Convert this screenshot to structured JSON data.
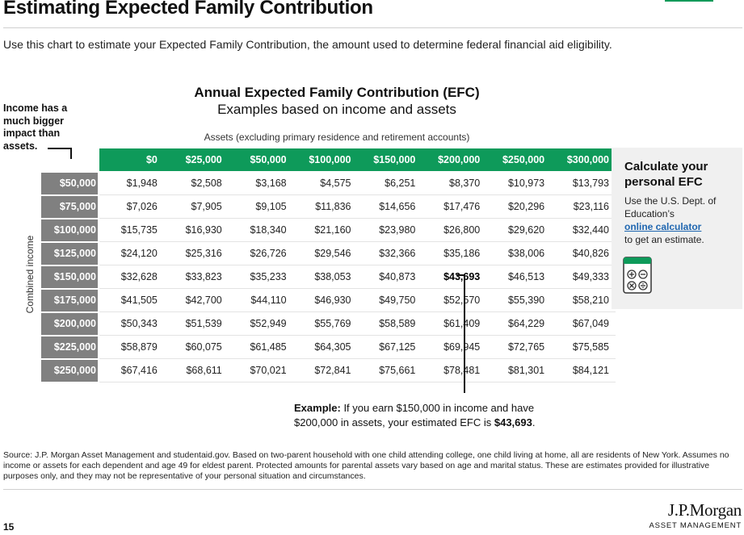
{
  "title": "Estimating Expected Family Contribution",
  "subtitle": "Use this chart to estimate your Expected Family Contribution, the amount used to determine federal financial aid eligibility.",
  "chart": {
    "title": "Annual Expected Family Contribution (EFC)",
    "subtitle": "Examples based on income and assets",
    "assets_axis_label": "Assets (excluding primary residence and retirement accounts)",
    "income_axis_label": "Combined income"
  },
  "side_note": "Income has a much bigger impact than assets.",
  "table": {
    "columns": [
      "$0",
      "$25,000",
      "$50,000",
      "$100,000",
      "$150,000",
      "$200,000",
      "$250,000",
      "$300,000"
    ],
    "rows": [
      {
        "income": "$50,000",
        "values": [
          "$1,948",
          "$2,508",
          "$3,168",
          "$4,575",
          "$6,251",
          "$8,370",
          "$10,973",
          "$13,793"
        ]
      },
      {
        "income": "$75,000",
        "values": [
          "$7,026",
          "$7,905",
          "$9,105",
          "$11,836",
          "$14,656",
          "$17,476",
          "$20,296",
          "$23,116"
        ]
      },
      {
        "income": "$100,000",
        "values": [
          "$15,735",
          "$16,930",
          "$18,340",
          "$21,160",
          "$23,980",
          "$26,800",
          "$29,620",
          "$32,440"
        ]
      },
      {
        "income": "$125,000",
        "values": [
          "$24,120",
          "$25,316",
          "$26,726",
          "$29,546",
          "$32,366",
          "$35,186",
          "$38,006",
          "$40,826"
        ]
      },
      {
        "income": "$150,000",
        "values": [
          "$32,628",
          "$33,823",
          "$35,233",
          "$38,053",
          "$40,873",
          "$43,693",
          "$46,513",
          "$49,333"
        ]
      },
      {
        "income": "$175,000",
        "values": [
          "$41,505",
          "$42,700",
          "$44,110",
          "$46,930",
          "$49,750",
          "$52,570",
          "$55,390",
          "$58,210"
        ]
      },
      {
        "income": "$200,000",
        "values": [
          "$50,343",
          "$51,539",
          "$52,949",
          "$55,769",
          "$58,589",
          "$61,409",
          "$64,229",
          "$67,049"
        ]
      },
      {
        "income": "$225,000",
        "values": [
          "$58,879",
          "$60,075",
          "$61,485",
          "$64,305",
          "$67,125",
          "$69,945",
          "$72,765",
          "$75,585"
        ]
      },
      {
        "income": "$250,000",
        "values": [
          "$67,416",
          "$68,611",
          "$70,021",
          "$72,841",
          "$75,661",
          "$78,481",
          "$81,301",
          "$84,121"
        ]
      }
    ],
    "highlight": {
      "row": 4,
      "col": 5
    }
  },
  "example": {
    "label": "Example:",
    "text_1": "If you earn $150,000 in income and have",
    "text_2": "$200,000 in assets, your estimated EFC is",
    "value": "$43,693",
    "end": "."
  },
  "calculator": {
    "title": "Calculate your personal EFC",
    "text_before": "Use the U.S. Dept. of Education’s",
    "link": "online calculator",
    "text_after": "to get an estimate.",
    "icon": "calculator-icon"
  },
  "source": "Source: J.P. Morgan Asset Management and studentaid.gov. Based on two-parent household with one child attending college, one child living at home, all are residents of New York. Assumes no income or assets for each dependent and age 49 for eldest parent. Protected amounts for parental assets vary based on age and marital status. These are estimates provided for illustrative purposes only, and they may not be representative of your personal situation and circumstances.",
  "page_number": "15",
  "logo": {
    "name": "J.P.Morgan",
    "sub": "ASSET MANAGEMENT"
  },
  "colors": {
    "accent": "#0e9a5a",
    "row_label_bg": "#808080",
    "link": "#1f66b0",
    "panel_bg": "#f0f0f0"
  }
}
